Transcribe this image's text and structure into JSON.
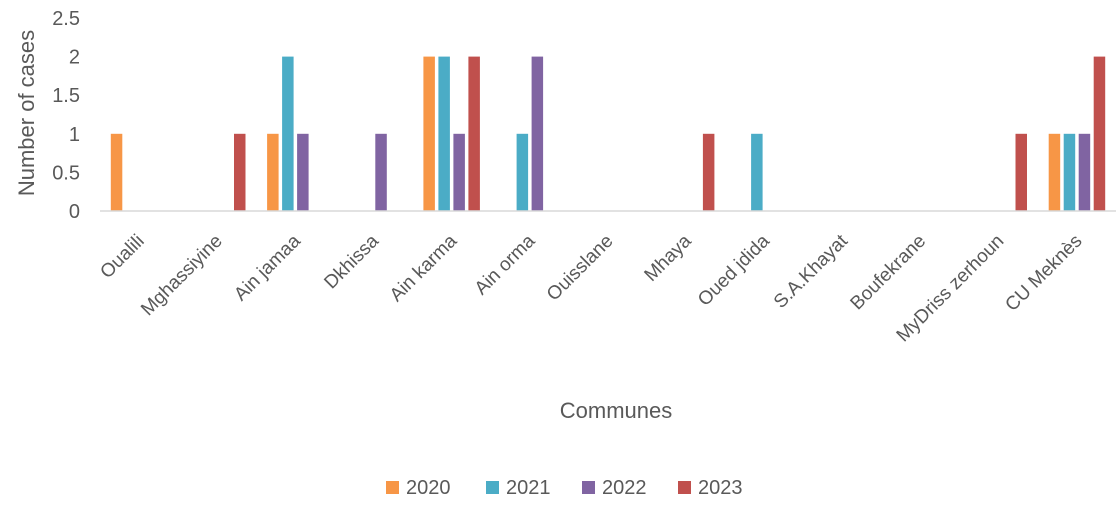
{
  "chart_data": {
    "type": "bar",
    "title": "",
    "xlabel": "Communes",
    "ylabel": "Number of cases",
    "ylim": [
      0,
      2.5
    ],
    "yticks": [
      "0",
      "0.5",
      "1",
      "1.5",
      "2",
      "2.5"
    ],
    "grid": false,
    "legend_position": "bottom",
    "categories": [
      "Oualili",
      "Mghassiyine",
      "Ain jamaa",
      "Dkhissa",
      "Ain karma",
      "Ain orma",
      "Ouisslane",
      "Mhaya",
      "Oued jdida",
      "S.A.Khayat",
      "Boufekrane",
      "MyDriss zerhoun",
      "CU Meknès"
    ],
    "series": [
      {
        "name": "2020",
        "color": "#F79646",
        "values": [
          1,
          0,
          1,
          0,
          2,
          0,
          0,
          0,
          0,
          0,
          0,
          0,
          1
        ]
      },
      {
        "name": "2021",
        "color": "#4BACC6",
        "values": [
          0,
          0,
          2,
          0,
          2,
          1,
          0,
          0,
          1,
          0,
          0,
          0,
          1
        ]
      },
      {
        "name": "2022",
        "color": "#8064A2",
        "values": [
          0,
          0,
          1,
          1,
          1,
          2,
          0,
          0,
          0,
          0,
          0,
          0,
          1
        ]
      },
      {
        "name": "2023",
        "color": "#C0504D",
        "values": [
          0,
          1,
          0,
          0,
          2,
          0,
          0,
          1,
          0,
          0,
          0,
          1,
          2
        ]
      }
    ]
  }
}
